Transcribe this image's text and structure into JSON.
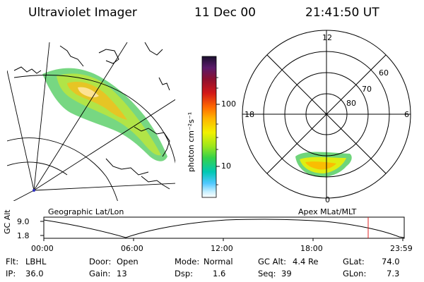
{
  "header": {
    "instrument": "Ultraviolet Imager",
    "date": "11 Dec 00",
    "time": "21:41:50 UT"
  },
  "colorbar": {
    "unit_label": "photon cm⁻²s⁻¹",
    "ticks": [
      "100",
      "10"
    ],
    "scale": "log",
    "colors_top_to_bottom": [
      "#1a0f2e",
      "#5a1a6a",
      "#8b1030",
      "#d21818",
      "#ff6a00",
      "#ffb400",
      "#f2f200",
      "#9ae61e",
      "#34d24a",
      "#00c8b4",
      "#50c8ff",
      "#c8f0ff",
      "#ffffff"
    ]
  },
  "geo_map": {
    "label": "Geographic Lat/Lon"
  },
  "polar_plot": {
    "label": "Apex MLat/MLT",
    "mlt_labels": [
      "12",
      "18",
      "6",
      "0"
    ],
    "mlat_labels": [
      "60",
      "70",
      "80"
    ]
  },
  "alt_chart": {
    "ylabel": "GC Alt",
    "yticks": [
      "9.0",
      "1.8"
    ],
    "xticks": [
      "00:00",
      "06:00",
      "12:00",
      "18:00",
      "23:59"
    ],
    "marker_color": "#e02020"
  },
  "info": {
    "flt_label": "Flt:",
    "flt_value": "LBHL",
    "ip_label": "IP:",
    "ip_value": "36.0",
    "door_label": "Door:",
    "door_value": "Open",
    "gain_label": "Gain:",
    "gain_value": "13",
    "mode_label": "Mode:",
    "mode_value": "Normal",
    "dsp_label": "Dsp:",
    "dsp_value": "1.6",
    "gcalt_label": "GC Alt:",
    "gcalt_value": "4.4 Re",
    "seq_label": "Seq:",
    "seq_value": "39",
    "glat_label": "GLat:",
    "glat_value": "74.0",
    "glon_label": "GLon:",
    "glon_value": "7.3"
  }
}
